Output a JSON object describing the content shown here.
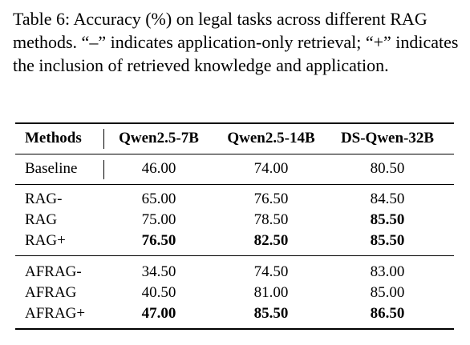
{
  "caption": "Table 6: Accuracy (%) on legal tasks across different RAG methods. “–” indicates application-only retrieval; “+” indicates the inclusion of retrieved knowledge and application.",
  "table": {
    "headers": [
      "Methods",
      "Qwen2.5-7B",
      "Qwen2.5-14B",
      "DS-Qwen-32B"
    ],
    "groups": [
      {
        "rows": [
          {
            "method": "Baseline",
            "values": [
              "46.00",
              "74.00",
              "80.50"
            ],
            "bold": [
              false,
              false,
              false
            ]
          }
        ]
      },
      {
        "rows": [
          {
            "method": "RAG-",
            "values": [
              "65.00",
              "76.50",
              "84.50"
            ],
            "bold": [
              false,
              false,
              false
            ]
          },
          {
            "method": "RAG",
            "values": [
              "75.00",
              "78.50",
              "85.50"
            ],
            "bold": [
              false,
              false,
              true
            ]
          },
          {
            "method": "RAG+",
            "values": [
              "76.50",
              "82.50",
              "85.50"
            ],
            "bold": [
              true,
              true,
              true
            ]
          }
        ]
      },
      {
        "rows": [
          {
            "method": "AFRAG-",
            "values": [
              "34.50",
              "74.50",
              "83.00"
            ],
            "bold": [
              false,
              false,
              false
            ]
          },
          {
            "method": "AFRAG",
            "values": [
              "40.50",
              "81.00",
              "85.00"
            ],
            "bold": [
              false,
              false,
              false
            ]
          },
          {
            "method": "AFRAG+",
            "values": [
              "47.00",
              "85.50",
              "86.50"
            ],
            "bold": [
              true,
              true,
              true
            ]
          }
        ]
      }
    ]
  }
}
